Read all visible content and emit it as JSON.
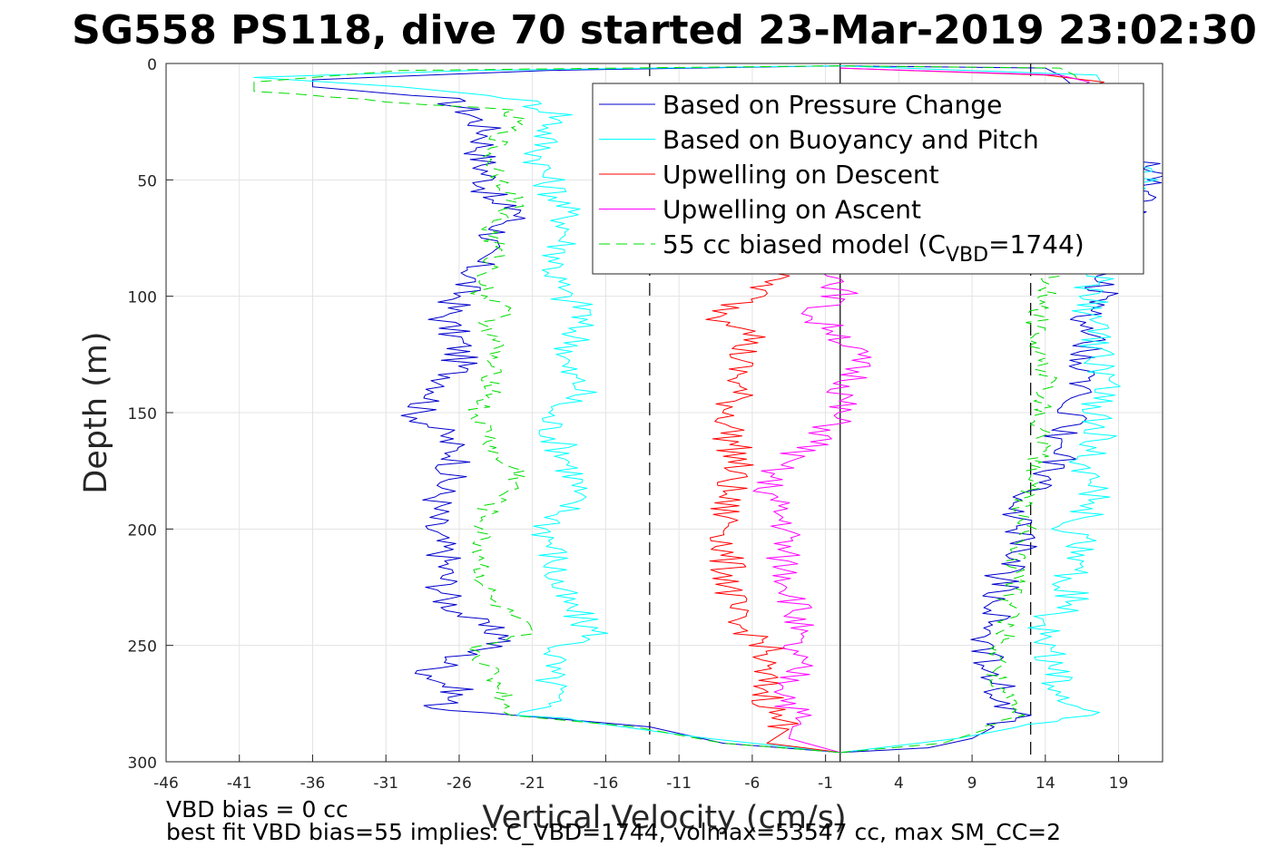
{
  "chart_data": {
    "type": "line",
    "title": "SG558 PS118, dive 70 started 23-Mar-2019 23:02:30",
    "xlabel": "Vertical Velocity (cm/s)",
    "ylabel": "Depth (m)",
    "xlim": [
      -46,
      22
    ],
    "ylim": [
      0,
      300
    ],
    "y_reversed": true,
    "grid": true,
    "xticks": [
      -46,
      -41,
      -36,
      -31,
      -26,
      -21,
      -16,
      -11,
      -6,
      -1,
      4,
      9,
      14,
      19
    ],
    "yticks": [
      0,
      50,
      100,
      150,
      200,
      250,
      300
    ],
    "reference_lines": [
      {
        "x": 0,
        "style": "solid",
        "color": "#000000"
      },
      {
        "x": -13,
        "style": "dashed",
        "color": "#000000"
      },
      {
        "x": 13,
        "style": "dashed",
        "color": "#000000"
      }
    ],
    "legend_position": "top-right",
    "series": [
      {
        "name": "Based on Pressure Change",
        "color": "#0000cc",
        "style": "solid",
        "descent": {
          "depth": [
            1,
            3,
            7,
            10,
            15,
            22,
            30,
            40,
            50,
            60,
            63,
            70,
            80,
            90,
            100,
            110,
            120,
            130,
            140,
            150,
            160,
            170,
            180,
            190,
            200,
            210,
            220,
            230,
            240,
            247,
            255,
            262,
            270,
            277,
            279,
            285,
            292,
            296
          ],
          "v": [
            0,
            -20,
            -36,
            -36,
            -27,
            -25,
            -24,
            -24.5,
            -24,
            -24,
            -21.5,
            -23,
            -24.5,
            -25,
            -26,
            -27,
            -26,
            -26,
            -27,
            -29,
            -27,
            -26,
            -27,
            -27.5,
            -28,
            -27,
            -27,
            -27,
            -25,
            -22.5,
            -26,
            -28,
            -26,
            -27.5,
            -24,
            -13,
            -8,
            0
          ]
        },
        "ascent": {
          "depth": [
            296,
            294,
            290,
            285,
            280,
            270,
            260,
            250,
            240,
            230,
            220,
            210,
            200,
            190,
            180,
            170,
            160,
            150,
            140,
            130,
            120,
            110,
            100,
            90,
            80,
            70,
            60,
            50,
            43,
            40,
            30,
            20,
            10,
            5,
            2,
            1
          ],
          "v": [
            0,
            6,
            9,
            10.5,
            12,
            11,
            10,
            10,
            10.5,
            11,
            11,
            12,
            12.5,
            12,
            13.5,
            15,
            15,
            16,
            16.5,
            16,
            17,
            17,
            18,
            18,
            19,
            19,
            20,
            21,
            21.5,
            19,
            18,
            17.5,
            16,
            15,
            14,
            0
          ]
        }
      },
      {
        "name": "Based on Buoyancy and Pitch",
        "color": "#00ffff",
        "style": "solid",
        "descent": {
          "depth": [
            1,
            3,
            6,
            10,
            15,
            22,
            30,
            40,
            50,
            60,
            70,
            80,
            90,
            100,
            107,
            110,
            120,
            130,
            140,
            145,
            150,
            160,
            170,
            180,
            190,
            200,
            210,
            220,
            230,
            240,
            246,
            250,
            260,
            270,
            280,
            284,
            290,
            296
          ],
          "v": [
            0,
            -25,
            -40,
            -30,
            -22,
            -19,
            -20,
            -20.5,
            -20,
            -19,
            -18.5,
            -19,
            -19.5,
            -19,
            -17,
            -18,
            -18,
            -19,
            -17.5,
            -18.5,
            -20,
            -19.5,
            -18.5,
            -18,
            -18.5,
            -20,
            -19.5,
            -19.5,
            -19,
            -17.5,
            -16.5,
            -19,
            -20,
            -19.5,
            -21,
            -16,
            -9,
            0
          ]
        },
        "ascent": {
          "depth": [
            296,
            290,
            284,
            280,
            270,
            260,
            250,
            240,
            230,
            220,
            210,
            200,
            190,
            180,
            170,
            160,
            150,
            140,
            130,
            120,
            110,
            100,
            90,
            80,
            70,
            60,
            50,
            45,
            40,
            30,
            20,
            10,
            5,
            1
          ],
          "v": [
            0,
            8,
            13,
            17,
            15,
            14.5,
            14,
            14,
            16,
            15.5,
            17,
            15.5,
            17.5,
            17,
            16.5,
            18,
            17,
            18.5,
            18,
            17.5,
            17,
            17,
            17.5,
            17.5,
            18,
            19,
            20.5,
            21,
            19,
            18,
            17.5,
            18,
            17.5,
            0
          ]
        }
      },
      {
        "name": "Upwelling on Descent",
        "color": "#ff0000",
        "style": "solid",
        "depth": [
          2,
          5,
          8,
          15,
          25,
          35,
          50,
          65,
          75,
          85,
          95,
          100,
          105,
          110,
          115,
          120,
          130,
          140,
          150,
          160,
          170,
          180,
          190,
          200,
          210,
          220,
          230,
          240,
          245,
          250,
          260,
          270,
          280,
          286,
          292,
          296
        ],
        "v": [
          0,
          14,
          18,
          14,
          2,
          -1,
          -1,
          -2,
          -3.5,
          -4,
          -5,
          -6,
          -7.5,
          -8,
          -5,
          -6.5,
          -7,
          -7,
          -7.5,
          -7.5,
          -7,
          -7.5,
          -8,
          -7.5,
          -8,
          -7.5,
          -7.5,
          -7.5,
          -6,
          -5,
          -5.5,
          -5,
          -4.5,
          -3.5,
          -5,
          0
        ]
      },
      {
        "name": "Upwelling on Ascent",
        "color": "#ff00ff",
        "style": "solid",
        "depth": [
          2,
          5,
          8,
          15,
          30,
          50,
          70,
          90,
          100,
          105,
          110,
          115,
          125,
          135,
          145,
          155,
          165,
          170,
          175,
          180,
          190,
          200,
          210,
          220,
          230,
          240,
          250,
          260,
          270,
          280,
          290,
          296
        ],
        "v": [
          0,
          15,
          17,
          14,
          4,
          1,
          0.5,
          0,
          0,
          -1.5,
          -2,
          0,
          1,
          1,
          0,
          -0.5,
          -2,
          -4,
          -4.5,
          -5,
          -4.5,
          -3.5,
          -4,
          -3.5,
          -3,
          -3,
          -3.5,
          -3,
          -3.5,
          -3,
          -3.5,
          0
        ]
      },
      {
        "name": "55 cc biased model (C_VBD=1744)",
        "legend_label": "55 cc biased model (C",
        "legend_sub": "VBD",
        "legend_tail": "=1744)",
        "color": "#00dd00",
        "style": "dashed",
        "descent": {
          "depth": [
            1,
            3,
            8,
            12,
            20,
            25,
            30,
            40,
            50,
            60,
            70,
            80,
            90,
            100,
            105,
            110,
            120,
            130,
            140,
            150,
            160,
            170,
            175,
            180,
            190,
            200,
            210,
            220,
            230,
            240,
            245,
            250,
            260,
            270,
            280,
            285,
            292,
            296
          ],
          "v": [
            0,
            -30,
            -40,
            -40,
            -23,
            -22,
            -23,
            -24,
            -23,
            -22,
            -24,
            -23.5,
            -24,
            -24.5,
            -22,
            -24,
            -23.5,
            -24,
            -23.5,
            -25,
            -24,
            -23.5,
            -22,
            -22,
            -24,
            -24.5,
            -24.5,
            -24.5,
            -24,
            -22,
            -21.5,
            -25,
            -24,
            -23,
            -22.5,
            -14,
            -8,
            0
          ]
        },
        "ascent": {
          "depth": [
            296,
            292,
            286,
            280,
            270,
            260,
            250,
            240,
            230,
            220,
            210,
            200,
            190,
            180,
            170,
            160,
            150,
            140,
            130,
            120,
            110,
            100,
            90,
            80,
            70,
            60,
            50,
            40,
            30,
            20,
            10,
            5,
            2,
            1
          ],
          "v": [
            0,
            7,
            10,
            12,
            11,
            10.5,
            11,
            11.5,
            11.5,
            12,
            12,
            13,
            12.5,
            13,
            13.5,
            14,
            13.5,
            14,
            14,
            13,
            13.5,
            14,
            14.5,
            15,
            15,
            15.5,
            16,
            17,
            17,
            17,
            16.5,
            16,
            15,
            0
          ]
        }
      }
    ],
    "annotations": [
      "VBD bias = 0 cc",
      "best fit VBD bias=55 implies: C_VBD=1744, volmax=53547 cc, max SM_CC=2"
    ]
  }
}
